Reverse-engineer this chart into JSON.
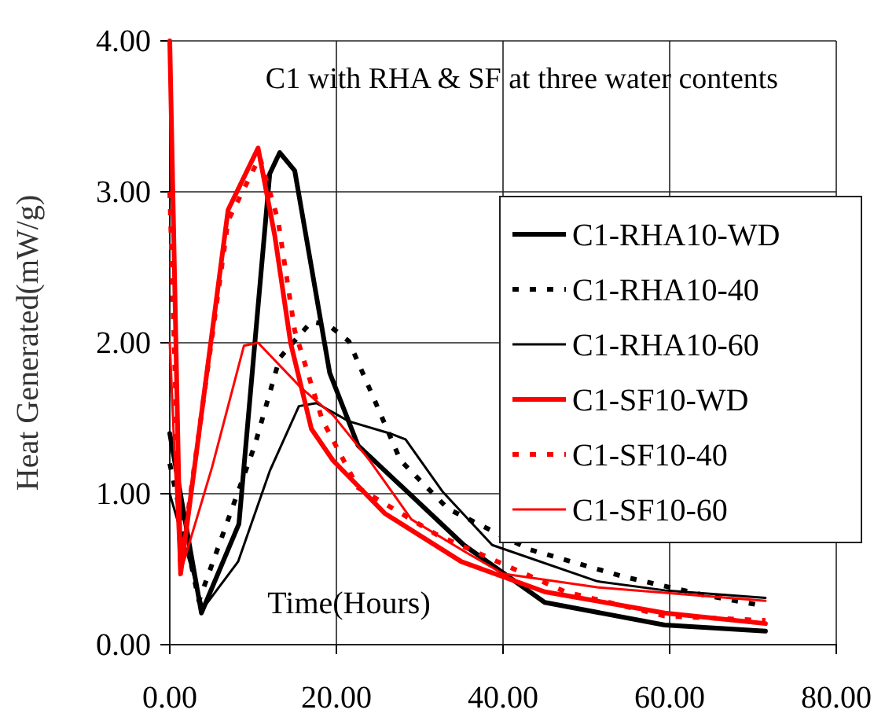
{
  "chart_data": {
    "type": "line",
    "title": "C1 with RHA & SF at three water contents",
    "xlabel": "Time(Hours)",
    "ylabel": "Heat Generated(mW/g)",
    "xlim": [
      0,
      80
    ],
    "xticks": [
      {
        "value": 0,
        "label": "0.00"
      },
      {
        "value": 20,
        "label": "20.00"
      },
      {
        "value": 40,
        "label": "40.00"
      },
      {
        "value": 60,
        "label": "60.00"
      },
      {
        "value": 80,
        "label": "80.00"
      }
    ],
    "ylim": [
      0,
      4
    ],
    "yticks": [
      {
        "value": 0,
        "label": "0.00"
      },
      {
        "value": 1,
        "label": "1.00"
      },
      {
        "value": 2,
        "label": "2.00"
      },
      {
        "value": 3,
        "label": "3.00"
      },
      {
        "value": 4,
        "label": "4.00"
      }
    ],
    "grid": true,
    "legend": "right",
    "marker": "none",
    "series": [
      {
        "name": "C1-RHA10-WD",
        "color": "#000000",
        "line_style": "solid",
        "x": [
          0,
          3.8,
          8.3,
          12,
          13.2,
          15,
          19.2,
          22.6,
          35.3,
          45,
          59.4,
          71.5
        ],
        "values": [
          1.4,
          0.21,
          0.8,
          3.12,
          3.26,
          3.14,
          1.8,
          1.32,
          0.66,
          0.28,
          0.13,
          0.09
        ]
      },
      {
        "name": "C1-RHA10-40",
        "color": "#000000",
        "line_style": "dotted",
        "x": [
          0,
          3.5,
          10.2,
          13.2,
          17,
          19,
          21.5,
          24.5,
          27.7,
          33.4,
          43.2,
          54.5,
          64,
          71
        ],
        "values": [
          1.2,
          0.29,
          1.32,
          1.9,
          2.14,
          2.12,
          2.01,
          1.63,
          1.22,
          0.9,
          0.63,
          0.45,
          0.33,
          0.26
        ]
      },
      {
        "name": "C1-RHA10-60",
        "color": "#000000",
        "line_style": "solid",
        "x": [
          0,
          4,
          8.2,
          12,
          15.5,
          17.6,
          21.5,
          26.4,
          28.3,
          32.8,
          38.7,
          51.3,
          59.4,
          71.5
        ],
        "values": [
          1.0,
          0.24,
          0.55,
          1.15,
          1.58,
          1.6,
          1.48,
          1.4,
          1.36,
          1.01,
          0.66,
          0.42,
          0.36,
          0.31
        ]
      },
      {
        "name": "C1-SF10-WD",
        "color": "#ff0000",
        "line_style": "solid",
        "x": [
          0,
          1.3,
          7,
          10.6,
          12.6,
          14.5,
          17,
          19.6,
          25.8,
          35,
          45,
          59.4,
          71.5
        ],
        "values": [
          4.0,
          0.47,
          2.88,
          3.29,
          2.71,
          2.0,
          1.43,
          1.22,
          0.87,
          0.55,
          0.35,
          0.21,
          0.14
        ]
      },
      {
        "name": "C1-SF10-40",
        "color": "#ff0000",
        "line_style": "dotted",
        "x": [
          0,
          1.3,
          7,
          10.8,
          13,
          15,
          18.3,
          22.6,
          32,
          47.5,
          59.4,
          71.5
        ],
        "values": [
          3.0,
          0.52,
          2.81,
          3.23,
          2.81,
          2.08,
          1.49,
          1.04,
          0.73,
          0.35,
          0.19,
          0.16
        ]
      },
      {
        "name": "C1-SF10-60",
        "color": "#ff0000",
        "line_style": "solid",
        "x": [
          0,
          1.2,
          5.1,
          8.9,
          10.6,
          15.8,
          19.6,
          24,
          29,
          35.3,
          40,
          51.3,
          71.5
        ],
        "values": [
          2.0,
          0.46,
          1.18,
          1.98,
          2.0,
          1.7,
          1.52,
          1.22,
          0.83,
          0.62,
          0.47,
          0.38,
          0.29
        ]
      }
    ]
  }
}
